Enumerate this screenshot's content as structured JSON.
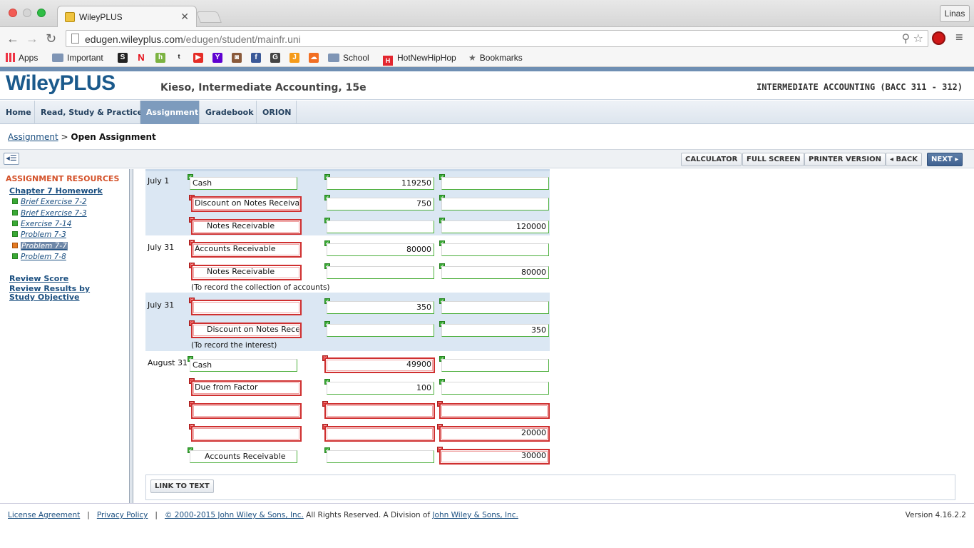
{
  "browser": {
    "tab_title": "WileyPLUS",
    "user_name": "Linas",
    "url_host": "edugen.wileyplus.com",
    "url_path": "/edugen/student/mainfr.uni",
    "bookmarks": [
      {
        "label": "Apps"
      },
      {
        "label": "Important"
      },
      {
        "label": "School"
      },
      {
        "label": "HotNewHipHop"
      },
      {
        "label": "Bookmarks"
      }
    ]
  },
  "header": {
    "logo": "WileyPLUS",
    "book_title": "Kieso, Intermediate Accounting, 15e",
    "course_title": "INTERMEDIATE ACCOUNTING (BACC 311 - 312)"
  },
  "nav": {
    "tabs": [
      {
        "label": "Home"
      },
      {
        "label": "Read, Study & Practice"
      },
      {
        "label": "Assignment",
        "active": true
      },
      {
        "label": "Gradebook"
      },
      {
        "label": "ORION"
      }
    ]
  },
  "breadcrumb": {
    "link": "Assignment",
    "separator": ">",
    "current": "Open Assignment"
  },
  "toolbar": {
    "calculator": "CALCULATOR",
    "full_screen": "FULL SCREEN",
    "printer_version": "PRINTER VERSION",
    "back": "◂ BACK",
    "next": "NEXT ▸"
  },
  "sidebar": {
    "title": "ASSIGNMENT RESOURCES",
    "chapter": "Chapter 7 Homework",
    "items": [
      {
        "label": "Brief Exercise 7-2",
        "status": "complete"
      },
      {
        "label": "Brief Exercise 7-3",
        "status": "complete"
      },
      {
        "label": "Exercise 7-14",
        "status": "complete"
      },
      {
        "label": "Problem 7-3",
        "status": "complete"
      },
      {
        "label": "Problem 7-7",
        "status": "current"
      },
      {
        "label": "Problem 7-8",
        "status": "complete"
      }
    ],
    "review_score": "Review Score",
    "review_results": "Review Results by Study Objective"
  },
  "journal": {
    "entries": [
      {
        "date": "July 1",
        "note": "",
        "rows": [
          {
            "account": "Cash",
            "account_ok": true,
            "debit": "119250",
            "debit_ok": true,
            "credit": "",
            "credit_ok": true
          },
          {
            "account": "Discount on Notes Receivable",
            "account_ok": false,
            "debit": "750",
            "debit_ok": true,
            "credit": "",
            "credit_ok": true
          },
          {
            "account": "Notes Receivable",
            "account_ok": false,
            "debit": "",
            "debit_ok": true,
            "credit": "120000",
            "credit_ok": true
          }
        ]
      },
      {
        "date": "July 31",
        "note": "(To record the collection of accounts)",
        "rows": [
          {
            "account": "Accounts Receivable",
            "account_ok": false,
            "debit": "80000",
            "debit_ok": true,
            "credit": "",
            "credit_ok": true
          },
          {
            "account": "Notes Receivable",
            "account_ok": false,
            "debit": "",
            "debit_ok": true,
            "credit": "80000",
            "credit_ok": true
          }
        ]
      },
      {
        "date": "July 31",
        "note": "(To record the interest)",
        "rows": [
          {
            "account": "",
            "account_ok": false,
            "debit": "350",
            "debit_ok": true,
            "credit": "",
            "credit_ok": true
          },
          {
            "account": "Discount on Notes Receivable",
            "account_ok": false,
            "debit": "",
            "debit_ok": true,
            "credit": "350",
            "credit_ok": true
          }
        ]
      },
      {
        "date": "August 31",
        "note": "",
        "rows": [
          {
            "account": "Cash",
            "account_ok": true,
            "debit": "49900",
            "debit_ok": false,
            "credit": "",
            "credit_ok": true
          },
          {
            "account": "Due from Factor",
            "account_ok": false,
            "debit": "100",
            "debit_ok": true,
            "credit": "",
            "credit_ok": true
          },
          {
            "account": "",
            "account_ok": false,
            "debit": "",
            "debit_ok": false,
            "credit": "",
            "credit_ok": false
          },
          {
            "account": "",
            "account_ok": false,
            "debit": "",
            "debit_ok": false,
            "credit": "20000",
            "credit_ok": false
          },
          {
            "account": "Accounts Receivable",
            "account_ok": true,
            "debit": "",
            "debit_ok": true,
            "credit": "30000",
            "credit_ok": false
          }
        ]
      }
    ]
  },
  "link_to_text": "LINK TO TEXT",
  "footer": {
    "license": "License Agreement",
    "privacy": "Privacy Policy",
    "copyright_link": "© 2000-2015 John Wiley & Sons, Inc.",
    "rights_text": "All Rights Reserved. A Division of",
    "division_link": "John Wiley & Sons, Inc.",
    "version": "Version 4.16.2.2"
  },
  "colors": {
    "brand": "#1b5a8c",
    "active_tab": "#7d9bbd",
    "resource_title": "#d4522a",
    "correct": "#3aa935",
    "incorrect": "#cf2f2f"
  }
}
